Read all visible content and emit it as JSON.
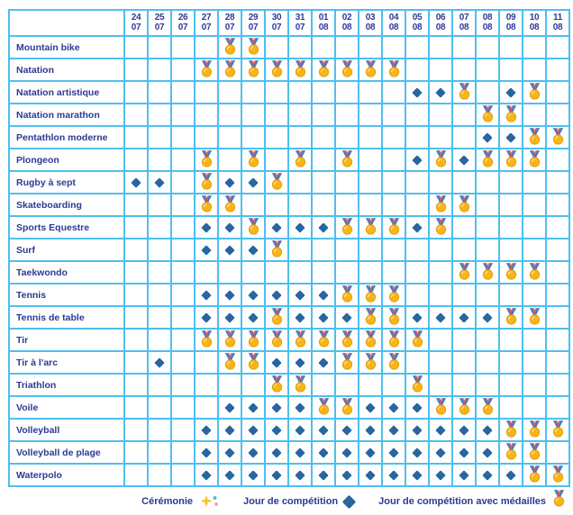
{
  "chart_data": {
    "type": "table",
    "title": "Calendrier des épreuves (schedule grid)",
    "columns": [
      "24/07",
      "25/07",
      "26/07",
      "27/07",
      "28/07",
      "29/07",
      "30/07",
      "31/07",
      "01/08",
      "02/08",
      "03/08",
      "04/08",
      "05/08",
      "06/08",
      "07/08",
      "08/08",
      "09/08",
      "10/08",
      "11/08"
    ],
    "cell_codes": {
      ".": "empty",
      "D": "jour-de-competition",
      "M": "jour-de-competition-avec-medailles"
    },
    "rows": [
      {
        "label": "Mountain bike",
        "cells": "....MM............."
      },
      {
        "label": "Natation",
        "cells": "...MMMMMMMMM......."
      },
      {
        "label": "Natation artistique",
        "cells": "............DDM.DM."
      },
      {
        "label": "Natation marathon",
        "cells": "...............MM.."
      },
      {
        "label": "Pentathlon moderne",
        "cells": "...............DDMM"
      },
      {
        "label": "Plongeon",
        "cells": "...M.M.M.M..DMDMMM."
      },
      {
        "label": "Rugby à sept",
        "cells": "DD.MDDM............"
      },
      {
        "label": "Skateboarding",
        "cells": "...MM........MM...."
      },
      {
        "label": "Sports Equestre",
        "cells": "...DDMDDDMMMDM....."
      },
      {
        "label": "Surf",
        "cells": "...DDDM............"
      },
      {
        "label": "Taekwondo",
        "cells": "..............MMMM."
      },
      {
        "label": "Tennis",
        "cells": "...DDDDDDMMM......."
      },
      {
        "label": "Tennis de table",
        "cells": "...DDDMDDDMMDDDDMM."
      },
      {
        "label": "Tir",
        "cells": "...MMMMMMMMMM......"
      },
      {
        "label": "Tir à l'arc",
        "cells": ".D..MMDDDMMM......."
      },
      {
        "label": "Triathlon",
        "cells": "......MM....M......"
      },
      {
        "label": "Voile",
        "cells": "....DDDDMMDDDMMM..."
      },
      {
        "label": "Volleyball",
        "cells": "...DDDDDDDDDDDDDMMM"
      },
      {
        "label": "Volleyball de plage",
        "cells": "...DDDDDDDDDDDDDMM."
      },
      {
        "label": "Waterpolo",
        "cells": "...DDDDDDDDDDDDDDMM"
      }
    ],
    "legend": [
      {
        "label": "Cérémonie",
        "icon": "ceremony-sparkle-icon"
      },
      {
        "label": "Jour de compétition",
        "icon": "competition-diamond-icon"
      },
      {
        "label": "Jour de compétition avec médailles",
        "icon": "medal-icon"
      }
    ]
  },
  "colors": {
    "grid_line": "#4dbff0",
    "text_navy": "#2b3a94",
    "diamond_blue": "#2766a0",
    "medal_gold": "#f9b517",
    "medal_gold_dark": "#e39d0b",
    "ribbon_blue": "#3d7ec2",
    "ribbon_red": "#ee4f57",
    "sparkle_yellow": "#fcc12e",
    "sparkle_blue": "#5ab9d9",
    "sparkle_pink": "#f48a96"
  }
}
